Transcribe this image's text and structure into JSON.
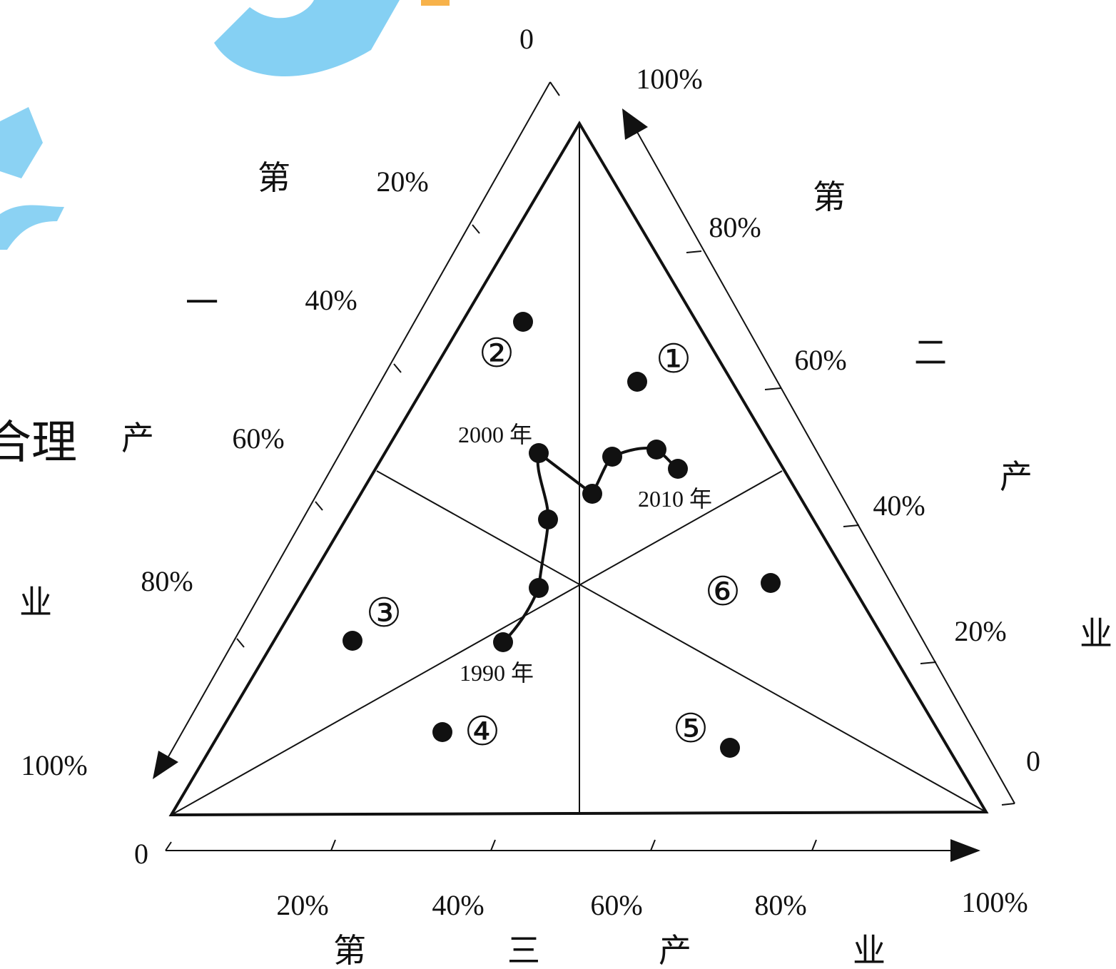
{
  "diagram": {
    "zero_label": "0",
    "left_axis": {
      "ticks": [
        "20%",
        "40%",
        "60%",
        "80%",
        "100%"
      ],
      "title_chars": [
        "第",
        "一",
        "产",
        "业"
      ]
    },
    "right_axis": {
      "ticks": [
        "100%",
        "80%",
        "60%",
        "40%",
        "20%"
      ],
      "title_chars": [
        "第",
        "二",
        "产",
        "业"
      ]
    },
    "bottom_axis": {
      "ticks": [
        "20%",
        "40%",
        "60%",
        "80%",
        "100%"
      ],
      "title_chars": [
        "第",
        "三",
        "产",
        "业"
      ]
    },
    "regions": [
      "①",
      "②",
      "③",
      "④",
      "⑤",
      "⑥"
    ],
    "trajectory_labels": {
      "start": "1990 年",
      "middle": "2000 年",
      "end": "2010 年"
    },
    "partial_text": "合理",
    "watermark_color": "#7ecdf2"
  }
}
